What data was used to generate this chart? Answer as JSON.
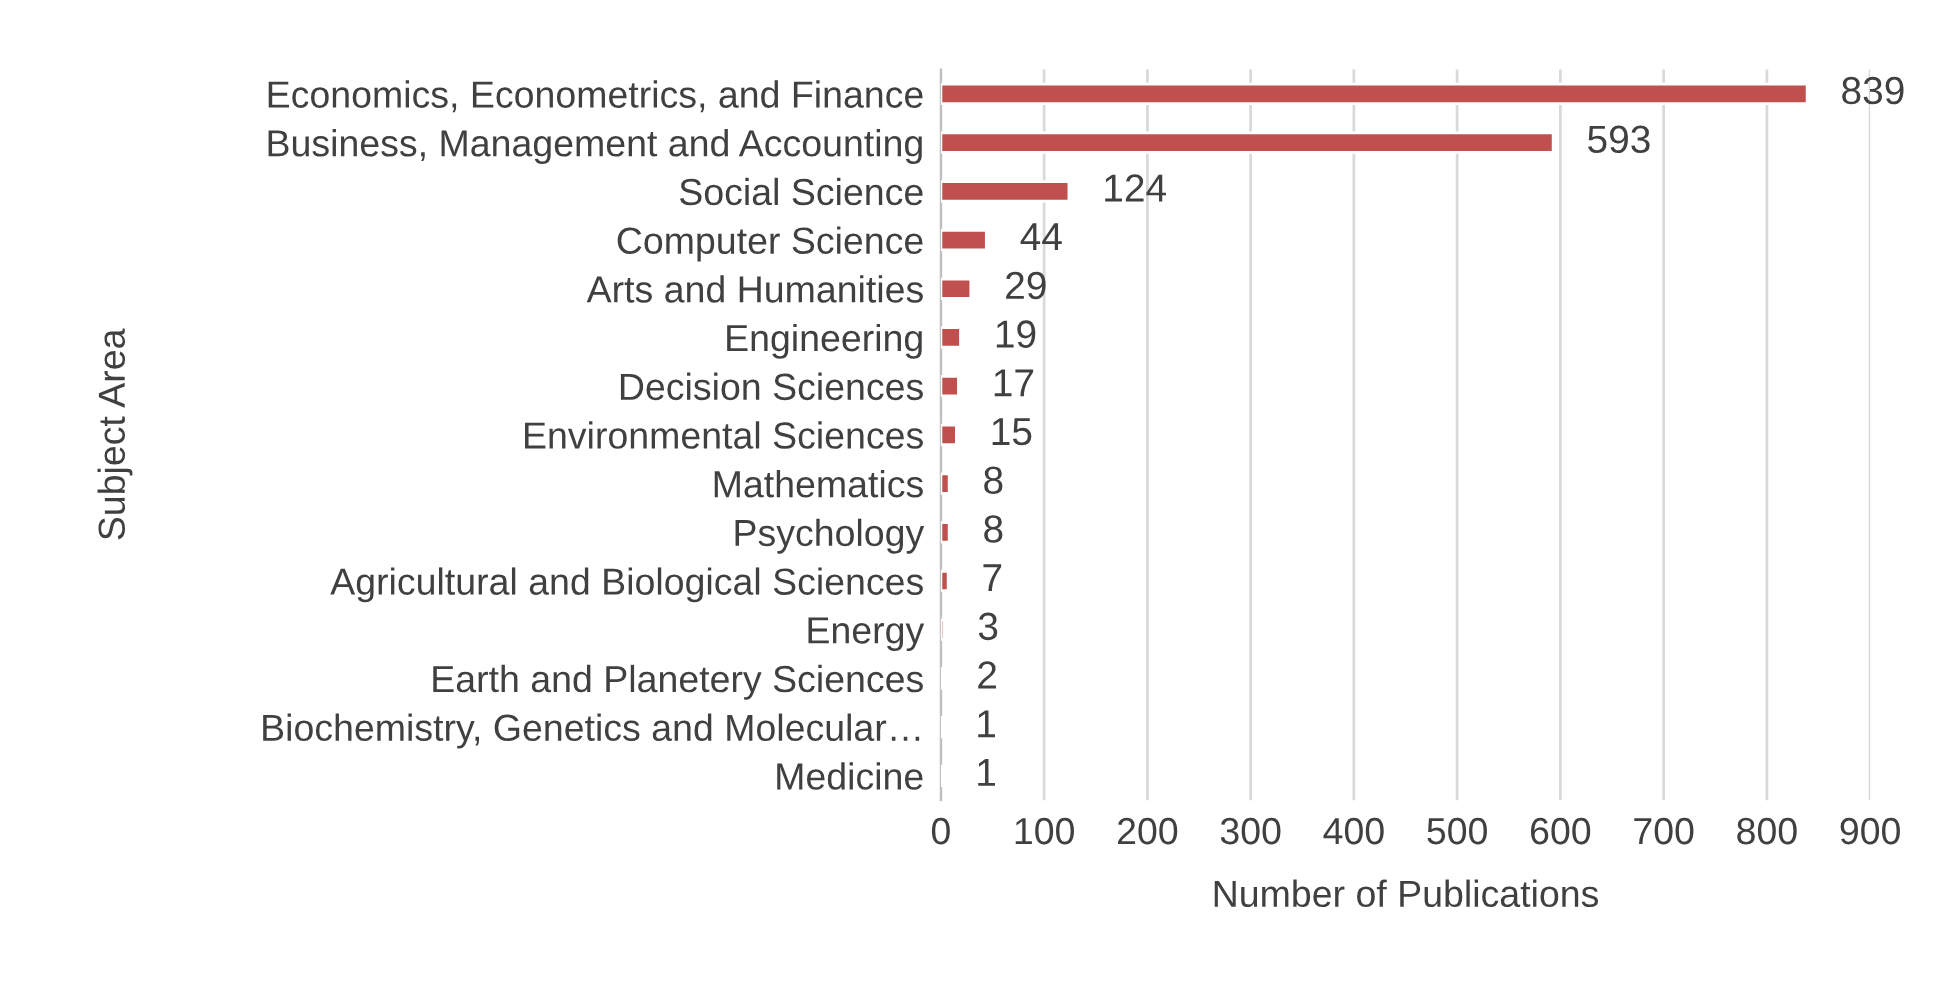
{
  "chart_data": {
    "type": "bar",
    "orientation": "horizontal",
    "xlabel": "Number of Publications",
    "ylabel": "Subject Area",
    "categories": [
      "Economics, Econometrics, and Finance",
      "Business, Management and Accounting",
      "Social Science",
      "Computer Science",
      "Arts and Humanities",
      "Engineering",
      "Decision Sciences",
      "Environmental Sciences",
      "Mathematics",
      "Psychology",
      "Agricultural and Biological Sciences",
      "Energy",
      "Earth and Planetery Sciences",
      "Biochemistry, Genetics and Molecular…",
      "Medicine"
    ],
    "values": [
      839,
      593,
      124,
      44,
      29,
      19,
      17,
      15,
      8,
      8,
      7,
      3,
      2,
      1,
      1
    ],
    "color": "#c0504d",
    "xlim": [
      0,
      900
    ],
    "xticks": [
      0,
      100,
      200,
      300,
      400,
      500,
      600,
      700,
      800,
      900
    ],
    "grid": "x",
    "data_labels": true
  }
}
